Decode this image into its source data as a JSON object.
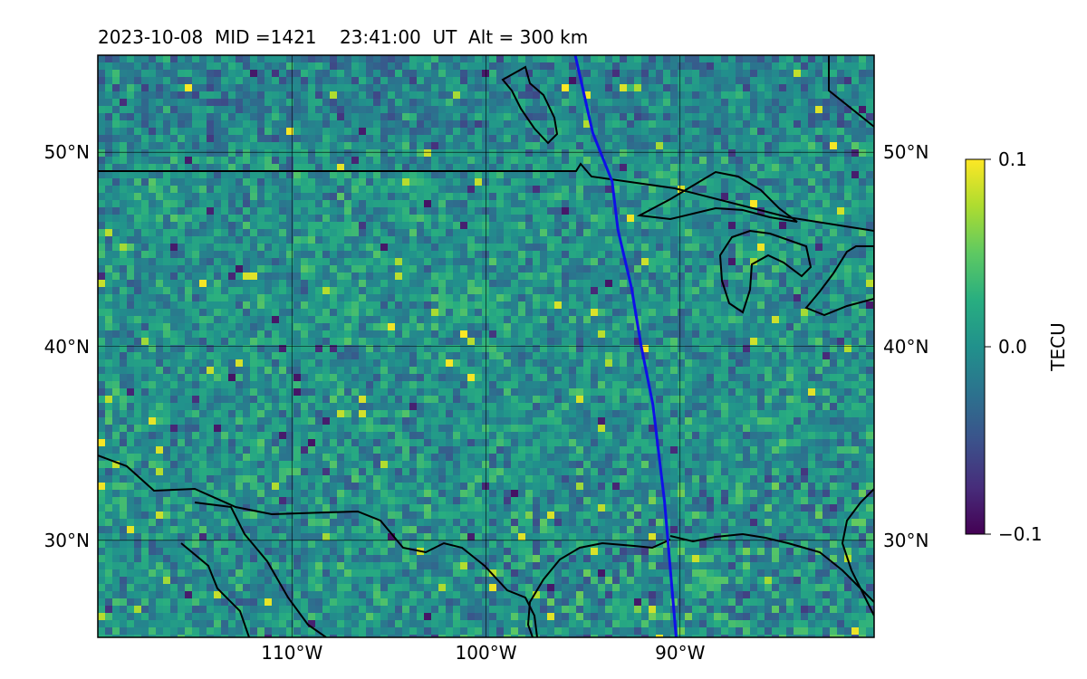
{
  "title": "2023-10-08  MID =1421    23:41:00  UT  Alt = 300 km",
  "map": {
    "extent": {
      "lon_min": -120,
      "lon_max": -80,
      "lat_min": 25,
      "lat_max": 55
    },
    "lat_ticks": [
      {
        "value": 50,
        "label": "50°N"
      },
      {
        "value": 40,
        "label": "40°N"
      },
      {
        "value": 30,
        "label": "30°N"
      }
    ],
    "lon_ticks": [
      {
        "value": -110,
        "label": "110°W"
      },
      {
        "value": -100,
        "label": "100°W"
      },
      {
        "value": -90,
        "label": "90°W"
      }
    ],
    "gridlines": true,
    "field": "TECU perturbation",
    "track_color": "#1010e8",
    "track": [
      [
        -95.4,
        55
      ],
      [
        -94.5,
        51
      ],
      [
        -93.5,
        48.5
      ],
      [
        -93.2,
        46
      ],
      [
        -92.5,
        43
      ],
      [
        -92.0,
        40
      ],
      [
        -91.4,
        37
      ],
      [
        -90.8,
        32
      ],
      [
        -90.2,
        25
      ]
    ]
  },
  "colorbar": {
    "label": "TECU",
    "colormap": "viridis",
    "min": -0.1,
    "max": 0.1,
    "ticks": [
      {
        "value": 0.1,
        "label": "0.1"
      },
      {
        "value": 0.0,
        "label": "0.0"
      },
      {
        "value": -0.1,
        "label": "−0.1"
      }
    ]
  }
}
